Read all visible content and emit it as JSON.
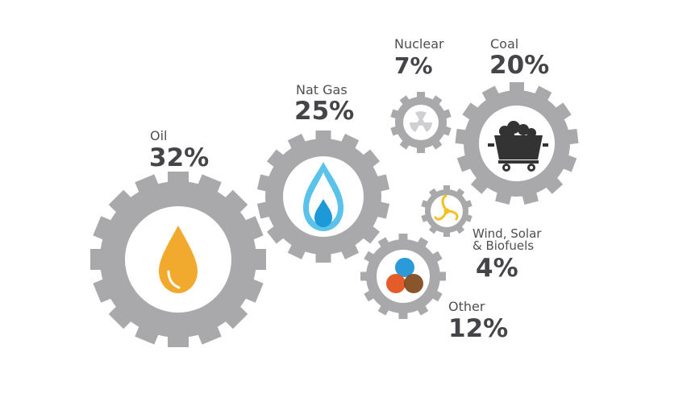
{
  "colors": {
    "gear": "#a9a9ab",
    "gear_inner": "#ffffff",
    "text": "#454549",
    "oil": "#f1aa2e",
    "gas_outer": "#5bc2ea",
    "gas_inner": "#1c99d6",
    "nuclear": "#cfcfd1",
    "coal": "#333333",
    "renewable": "#f2c11c",
    "other_blue": "#2a9bd8",
    "other_orange": "#e2531d",
    "other_brown": "#7b4216"
  },
  "chart_data": {
    "type": "pie",
    "categories": [
      "Oil",
      "Nat Gas",
      "Nuclear",
      "Coal",
      "Wind, Solar & Biofuels",
      "Other"
    ],
    "values": [
      32,
      25,
      7,
      20,
      4,
      12
    ]
  },
  "sources": [
    {
      "id": "oil",
      "name": "Oil",
      "percent": "32%",
      "icon": "oil-drop-icon"
    },
    {
      "id": "gas",
      "name": "Nat Gas",
      "percent": "25%",
      "icon": "gas-flame-icon"
    },
    {
      "id": "nuclear",
      "name": "Nuclear",
      "percent": "7%",
      "icon": "radiation-icon"
    },
    {
      "id": "coal",
      "name": "Coal",
      "percent": "20%",
      "icon": "coal-cart-icon"
    },
    {
      "id": "renewable",
      "name_line1": "Wind, Solar",
      "name_line2": "& Biofuels",
      "percent": "4%",
      "icon": "wind-turbine-icon"
    },
    {
      "id": "other",
      "name": "Other",
      "percent": "12%",
      "icon": "overlapping-circles-icon"
    }
  ]
}
